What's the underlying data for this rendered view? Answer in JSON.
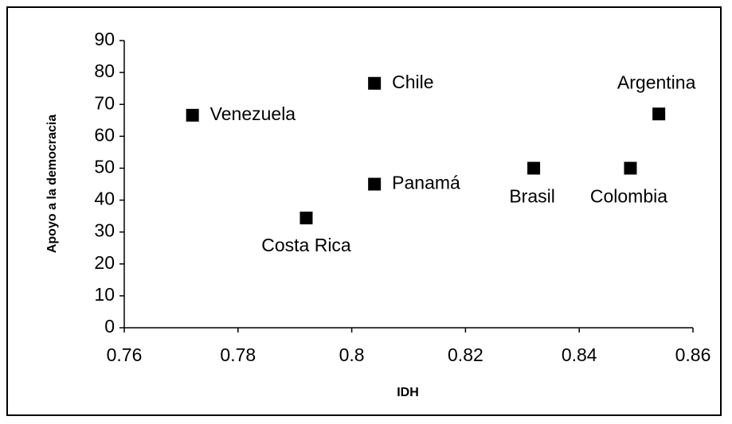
{
  "chart_data": {
    "type": "scatter",
    "x_label": "IDH",
    "y_label": "Apoyo a la democracia",
    "labels": [
      "Venezuela",
      "Costa Rica",
      "Chile",
      "Panamá",
      "Brasil",
      "Colombia",
      "Argentina"
    ],
    "x": [
      0.772,
      0.792,
      0.804,
      0.804,
      0.832,
      0.849,
      0.854
    ],
    "y": [
      66.6,
      34.4,
      76.6,
      45,
      50,
      50,
      67
    ],
    "color": "#000000",
    "xlim": [
      0.76,
      0.86
    ],
    "xticks": [
      0.76,
      0.78,
      0.8,
      0.82,
      0.84,
      0.86
    ],
    "ylim": [
      0,
      90
    ],
    "yticks": [
      0,
      10,
      20,
      30,
      40,
      50,
      60,
      70,
      80,
      90
    ]
  }
}
